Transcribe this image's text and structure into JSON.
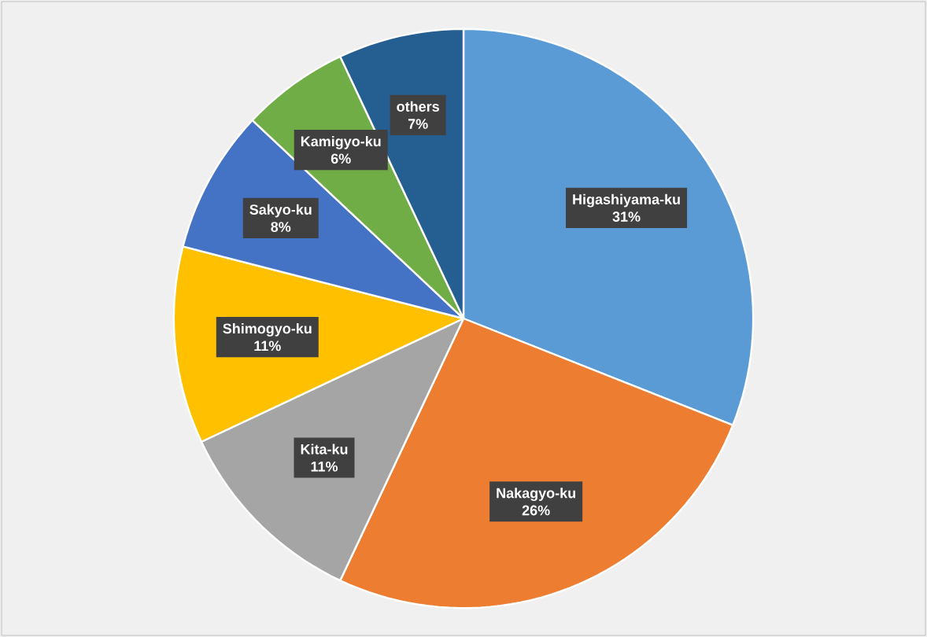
{
  "chart_data": {
    "type": "pie",
    "categories": [
      "Higashiyama-ku",
      "Nakagyo-ku",
      "Kita-ku",
      "Shimogyo-ku",
      "Sakyo-ku",
      "Kamigyo-ku",
      "others"
    ],
    "values": [
      31,
      26,
      11,
      11,
      8,
      6,
      7
    ],
    "colors": [
      "#5b9bd5",
      "#ed7d31",
      "#a5a5a5",
      "#ffc000",
      "#4472c4",
      "#70ad47",
      "#255e91"
    ],
    "value_labels": [
      "31%",
      "26%",
      "11%",
      "11%",
      "8%",
      "6%",
      "7%"
    ]
  }
}
